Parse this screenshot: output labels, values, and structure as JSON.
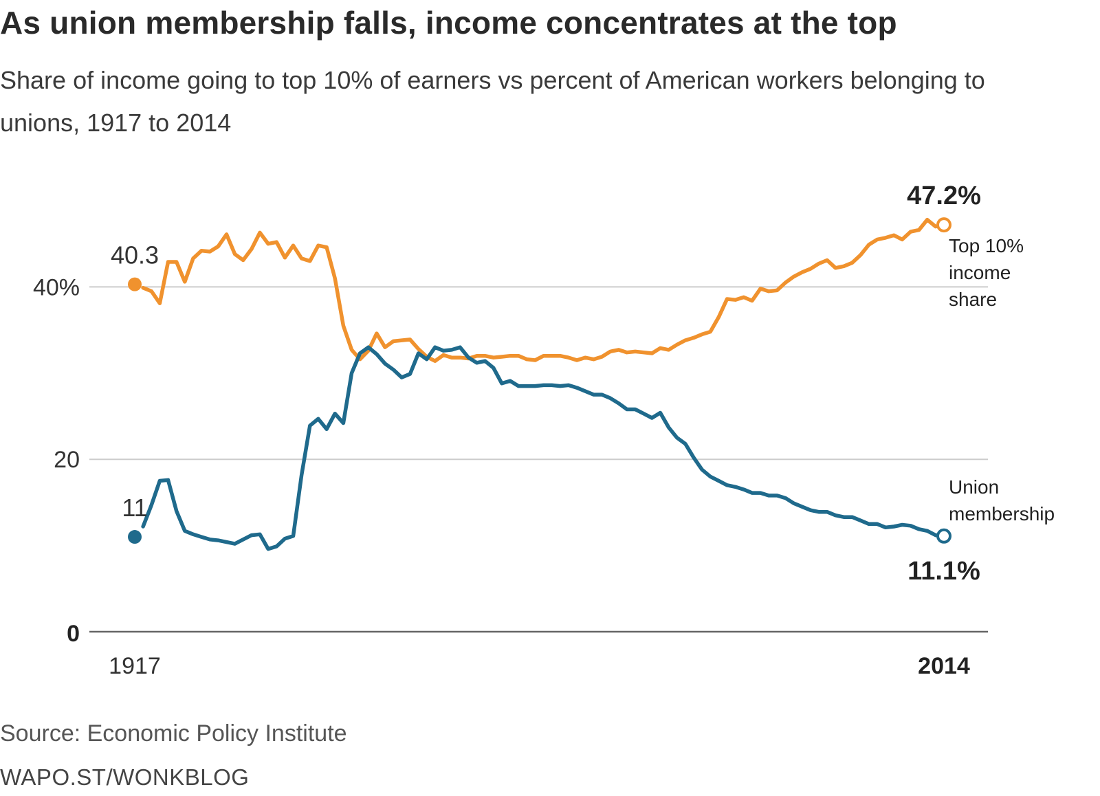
{
  "title": "As union membership falls, income concentrates at the top",
  "subtitle": "Share of income going to top 10% of earners vs percent of American workers belonging to unions, 1917 to 2014",
  "source": "Source: Economic Policy Institute",
  "credit": "WAPO.ST/WONKBLOG",
  "colors": {
    "income": "#f0922e",
    "union": "#1f6a8c",
    "grid": "#cccccc",
    "axis": "#666666"
  },
  "chart_data": {
    "type": "line",
    "title": "As union membership falls, income concentrates at the top",
    "subtitle": "Share of income going to top 10% of earners vs percent of American workers belonging to unions, 1917 to 2014",
    "xlim": [
      1917,
      2014
    ],
    "ylim": [
      0,
      50
    ],
    "x_tick_labels": [
      "1917",
      "2014"
    ],
    "y_tick_labels": [
      "0",
      "20",
      "40%"
    ],
    "y_ticks": [
      0,
      20,
      40
    ],
    "grid": "horizontal",
    "legend": "direct labels at right",
    "start_labels": {
      "income": "40.3",
      "union": "11"
    },
    "end_labels": {
      "income": "47.2%",
      "union": "11.1%"
    },
    "series": [
      {
        "name": "Top 10% income share",
        "label_lines": [
          "Top 10%",
          "income",
          "share"
        ],
        "color": "#f0922e",
        "start": 40.3,
        "end": 47.2,
        "points": [
          [
            1917,
            40.3
          ],
          [
            1918,
            39.9
          ],
          [
            1919,
            39.5
          ],
          [
            1920,
            38.1
          ],
          [
            1921,
            42.9
          ],
          [
            1922,
            42.9
          ],
          [
            1923,
            40.6
          ],
          [
            1924,
            43.3
          ],
          [
            1925,
            44.2
          ],
          [
            1926,
            44.1
          ],
          [
            1927,
            44.7
          ],
          [
            1928,
            46.1
          ],
          [
            1929,
            43.8
          ],
          [
            1930,
            43.1
          ],
          [
            1931,
            44.4
          ],
          [
            1932,
            46.3
          ],
          [
            1933,
            45.0
          ],
          [
            1934,
            45.2
          ],
          [
            1935,
            43.4
          ],
          [
            1936,
            44.8
          ],
          [
            1937,
            43.3
          ],
          [
            1938,
            43.0
          ],
          [
            1939,
            44.8
          ],
          [
            1940,
            44.6
          ],
          [
            1941,
            41.0
          ],
          [
            1942,
            35.5
          ],
          [
            1943,
            32.7
          ],
          [
            1944,
            31.6
          ],
          [
            1945,
            32.6
          ],
          [
            1946,
            34.6
          ],
          [
            1947,
            33.0
          ],
          [
            1948,
            33.7
          ],
          [
            1949,
            33.8
          ],
          [
            1950,
            33.9
          ],
          [
            1951,
            32.8
          ],
          [
            1952,
            31.9
          ],
          [
            1953,
            31.4
          ],
          [
            1954,
            32.1
          ],
          [
            1955,
            31.8
          ],
          [
            1956,
            31.8
          ],
          [
            1957,
            31.7
          ],
          [
            1958,
            32.0
          ],
          [
            1959,
            32.0
          ],
          [
            1960,
            31.8
          ],
          [
            1961,
            31.9
          ],
          [
            1962,
            32.0
          ],
          [
            1963,
            32.0
          ],
          [
            1964,
            31.6
          ],
          [
            1965,
            31.5
          ],
          [
            1966,
            32.0
          ],
          [
            1967,
            32.0
          ],
          [
            1968,
            32.0
          ],
          [
            1969,
            31.8
          ],
          [
            1970,
            31.5
          ],
          [
            1971,
            31.8
          ],
          [
            1972,
            31.6
          ],
          [
            1973,
            31.9
          ],
          [
            1974,
            32.5
          ],
          [
            1975,
            32.7
          ],
          [
            1976,
            32.4
          ],
          [
            1977,
            32.5
          ],
          [
            1978,
            32.4
          ],
          [
            1979,
            32.3
          ],
          [
            1980,
            32.9
          ],
          [
            1981,
            32.7
          ],
          [
            1982,
            33.3
          ],
          [
            1983,
            33.8
          ],
          [
            1984,
            34.1
          ],
          [
            1985,
            34.5
          ],
          [
            1986,
            34.8
          ],
          [
            1987,
            36.5
          ],
          [
            1988,
            38.6
          ],
          [
            1989,
            38.5
          ],
          [
            1990,
            38.8
          ],
          [
            1991,
            38.4
          ],
          [
            1992,
            39.8
          ],
          [
            1993,
            39.5
          ],
          [
            1994,
            39.6
          ],
          [
            1995,
            40.5
          ],
          [
            1996,
            41.2
          ],
          [
            1997,
            41.7
          ],
          [
            1998,
            42.1
          ],
          [
            1999,
            42.7
          ],
          [
            2000,
            43.1
          ],
          [
            2001,
            42.2
          ],
          [
            2002,
            42.4
          ],
          [
            2003,
            42.8
          ],
          [
            2004,
            43.7
          ],
          [
            2005,
            44.9
          ],
          [
            2006,
            45.5
          ],
          [
            2007,
            45.7
          ],
          [
            2008,
            46.0
          ],
          [
            2009,
            45.5
          ],
          [
            2010,
            46.4
          ],
          [
            2011,
            46.6
          ],
          [
            2012,
            47.8
          ],
          [
            2013,
            47.0
          ],
          [
            2014,
            47.2
          ]
        ]
      },
      {
        "name": "Union membership",
        "label_lines": [
          "Union",
          "membership"
        ],
        "color": "#1f6a8c",
        "start": 11,
        "end": 11.1,
        "points": [
          [
            1917,
            11.0
          ],
          [
            1918,
            12.2
          ],
          [
            1919,
            14.7
          ],
          [
            1920,
            17.5
          ],
          [
            1921,
            17.6
          ],
          [
            1922,
            14.0
          ],
          [
            1923,
            11.7
          ],
          [
            1924,
            11.3
          ],
          [
            1925,
            11.0
          ],
          [
            1926,
            10.7
          ],
          [
            1927,
            10.6
          ],
          [
            1928,
            10.4
          ],
          [
            1929,
            10.2
          ],
          [
            1930,
            10.7
          ],
          [
            1931,
            11.2
          ],
          [
            1932,
            11.3
          ],
          [
            1933,
            9.6
          ],
          [
            1934,
            9.9
          ],
          [
            1935,
            10.8
          ],
          [
            1936,
            11.1
          ],
          [
            1937,
            18.2
          ],
          [
            1938,
            23.9
          ],
          [
            1939,
            24.7
          ],
          [
            1940,
            23.5
          ],
          [
            1941,
            25.3
          ],
          [
            1942,
            24.2
          ],
          [
            1943,
            30.0
          ],
          [
            1944,
            32.3
          ],
          [
            1945,
            33.0
          ],
          [
            1946,
            32.2
          ],
          [
            1947,
            31.1
          ],
          [
            1948,
            30.4
          ],
          [
            1949,
            29.5
          ],
          [
            1950,
            29.9
          ],
          [
            1951,
            32.3
          ],
          [
            1952,
            31.6
          ],
          [
            1953,
            33.0
          ],
          [
            1954,
            32.6
          ],
          [
            1955,
            32.7
          ],
          [
            1956,
            33.0
          ],
          [
            1957,
            31.8
          ],
          [
            1958,
            31.2
          ],
          [
            1959,
            31.4
          ],
          [
            1960,
            30.6
          ],
          [
            1961,
            28.8
          ],
          [
            1962,
            29.1
          ],
          [
            1963,
            28.5
          ],
          [
            1964,
            28.5
          ],
          [
            1965,
            28.5
          ],
          [
            1966,
            28.6
          ],
          [
            1967,
            28.6
          ],
          [
            1968,
            28.5
          ],
          [
            1969,
            28.6
          ],
          [
            1970,
            28.3
          ],
          [
            1971,
            27.9
          ],
          [
            1972,
            27.5
          ],
          [
            1973,
            27.5
          ],
          [
            1974,
            27.1
          ],
          [
            1975,
            26.5
          ],
          [
            1976,
            25.8
          ],
          [
            1977,
            25.8
          ],
          [
            1978,
            25.3
          ],
          [
            1979,
            24.8
          ],
          [
            1980,
            25.4
          ],
          [
            1981,
            23.7
          ],
          [
            1982,
            22.5
          ],
          [
            1983,
            21.8
          ],
          [
            1984,
            20.2
          ],
          [
            1985,
            18.8
          ],
          [
            1986,
            18.0
          ],
          [
            1987,
            17.5
          ],
          [
            1988,
            17.0
          ],
          [
            1989,
            16.8
          ],
          [
            1990,
            16.5
          ],
          [
            1991,
            16.1
          ],
          [
            1992,
            16.1
          ],
          [
            1993,
            15.8
          ],
          [
            1994,
            15.8
          ],
          [
            1995,
            15.5
          ],
          [
            1996,
            14.9
          ],
          [
            1997,
            14.5
          ],
          [
            1998,
            14.1
          ],
          [
            1999,
            13.9
          ],
          [
            2000,
            13.9
          ],
          [
            2001,
            13.5
          ],
          [
            2002,
            13.3
          ],
          [
            2003,
            13.3
          ],
          [
            2004,
            12.9
          ],
          [
            2005,
            12.5
          ],
          [
            2006,
            12.5
          ],
          [
            2007,
            12.1
          ],
          [
            2008,
            12.2
          ],
          [
            2009,
            12.4
          ],
          [
            2010,
            12.3
          ],
          [
            2011,
            11.9
          ],
          [
            2012,
            11.7
          ],
          [
            2013,
            11.2
          ],
          [
            2014,
            11.1
          ]
        ]
      }
    ]
  }
}
